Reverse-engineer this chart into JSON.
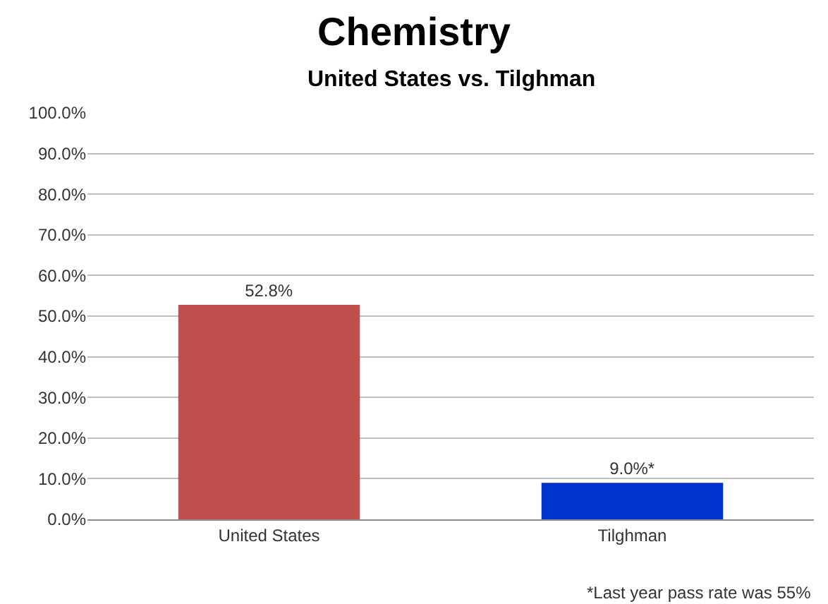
{
  "chart_data": {
    "type": "bar",
    "title": "Chemistry",
    "subtitle": "United States vs. Tilghman",
    "categories": [
      "United States",
      "Tilghman"
    ],
    "values": [
      52.8,
      9.0
    ],
    "colors": [
      "#c0504d",
      "#0033cc"
    ],
    "value_labels": [
      "52.8%",
      "9.0%*"
    ],
    "ylim": [
      0,
      100
    ],
    "yticks": [
      {
        "value": 0,
        "label": "0.0%"
      },
      {
        "value": 10,
        "label": "10.0%"
      },
      {
        "value": 20,
        "label": "20.0%"
      },
      {
        "value": 30,
        "label": "30.0%"
      },
      {
        "value": 40,
        "label": "40.0%"
      },
      {
        "value": 50,
        "label": "50.0%"
      },
      {
        "value": 60,
        "label": "60.0%"
      },
      {
        "value": 70,
        "label": "70.0%"
      },
      {
        "value": 80,
        "label": "80.0%"
      },
      {
        "value": 90,
        "label": "90.0%"
      },
      {
        "value": 100,
        "label": "100.0%"
      }
    ],
    "grid": "y",
    "annotations": [
      "*Last year pass rate was 55%"
    ]
  }
}
